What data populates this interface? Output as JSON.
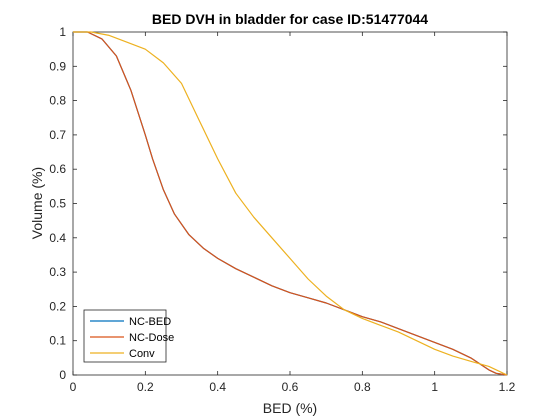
{
  "chart_data": {
    "type": "line",
    "title": "BED DVH in bladder for case ID:51477044",
    "xlabel": "BED (%)",
    "ylabel": "Volume (%)",
    "xlim": [
      0,
      1.2
    ],
    "ylim": [
      0,
      1
    ],
    "xticks": [
      "0",
      "0.2",
      "0.4",
      "0.6",
      "0.8",
      "1",
      "1.2"
    ],
    "yticks": [
      "0",
      "0.1",
      "0.2",
      "0.3",
      "0.4",
      "0.5",
      "0.6",
      "0.7",
      "0.8",
      "0.9",
      "1"
    ],
    "grid": false,
    "legend_position": "bottom-left",
    "series": [
      {
        "name": "NC-BED",
        "color": "#0072BD",
        "x": [
          0,
          0.04,
          0.08,
          0.12,
          0.16,
          0.2,
          0.22,
          0.25,
          0.28,
          0.32,
          0.36,
          0.4,
          0.45,
          0.5,
          0.55,
          0.6,
          0.65,
          0.7,
          0.75,
          0.8,
          0.85,
          0.9,
          0.95,
          1.0,
          1.05,
          1.1,
          1.15,
          1.17,
          1.2
        ],
        "y": [
          1,
          1,
          0.98,
          0.93,
          0.83,
          0.7,
          0.63,
          0.54,
          0.47,
          0.41,
          0.37,
          0.34,
          0.31,
          0.285,
          0.26,
          0.24,
          0.225,
          0.21,
          0.19,
          0.17,
          0.155,
          0.135,
          0.115,
          0.095,
          0.075,
          0.05,
          0.015,
          0.005,
          0
        ]
      },
      {
        "name": "NC-Dose",
        "color": "#D95319",
        "x": [
          0,
          0.04,
          0.08,
          0.12,
          0.16,
          0.2,
          0.22,
          0.25,
          0.28,
          0.32,
          0.36,
          0.4,
          0.45,
          0.5,
          0.55,
          0.6,
          0.65,
          0.7,
          0.75,
          0.8,
          0.85,
          0.9,
          0.95,
          1.0,
          1.05,
          1.1,
          1.15,
          1.17,
          1.2
        ],
        "y": [
          1,
          1,
          0.98,
          0.93,
          0.83,
          0.7,
          0.63,
          0.54,
          0.47,
          0.41,
          0.37,
          0.34,
          0.31,
          0.285,
          0.26,
          0.24,
          0.225,
          0.21,
          0.19,
          0.17,
          0.155,
          0.135,
          0.115,
          0.095,
          0.075,
          0.05,
          0.015,
          0.005,
          0
        ]
      },
      {
        "name": "Conv",
        "color": "#EDB120",
        "x": [
          0,
          0.05,
          0.1,
          0.15,
          0.2,
          0.25,
          0.3,
          0.35,
          0.4,
          0.45,
          0.5,
          0.55,
          0.6,
          0.65,
          0.7,
          0.75,
          0.8,
          0.85,
          0.9,
          0.95,
          1.0,
          1.05,
          1.1,
          1.15,
          1.18,
          1.2
        ],
        "y": [
          1,
          1,
          0.99,
          0.97,
          0.95,
          0.91,
          0.85,
          0.74,
          0.63,
          0.53,
          0.46,
          0.4,
          0.34,
          0.28,
          0.23,
          0.19,
          0.165,
          0.145,
          0.125,
          0.1,
          0.075,
          0.055,
          0.04,
          0.025,
          0.01,
          0
        ]
      }
    ]
  }
}
